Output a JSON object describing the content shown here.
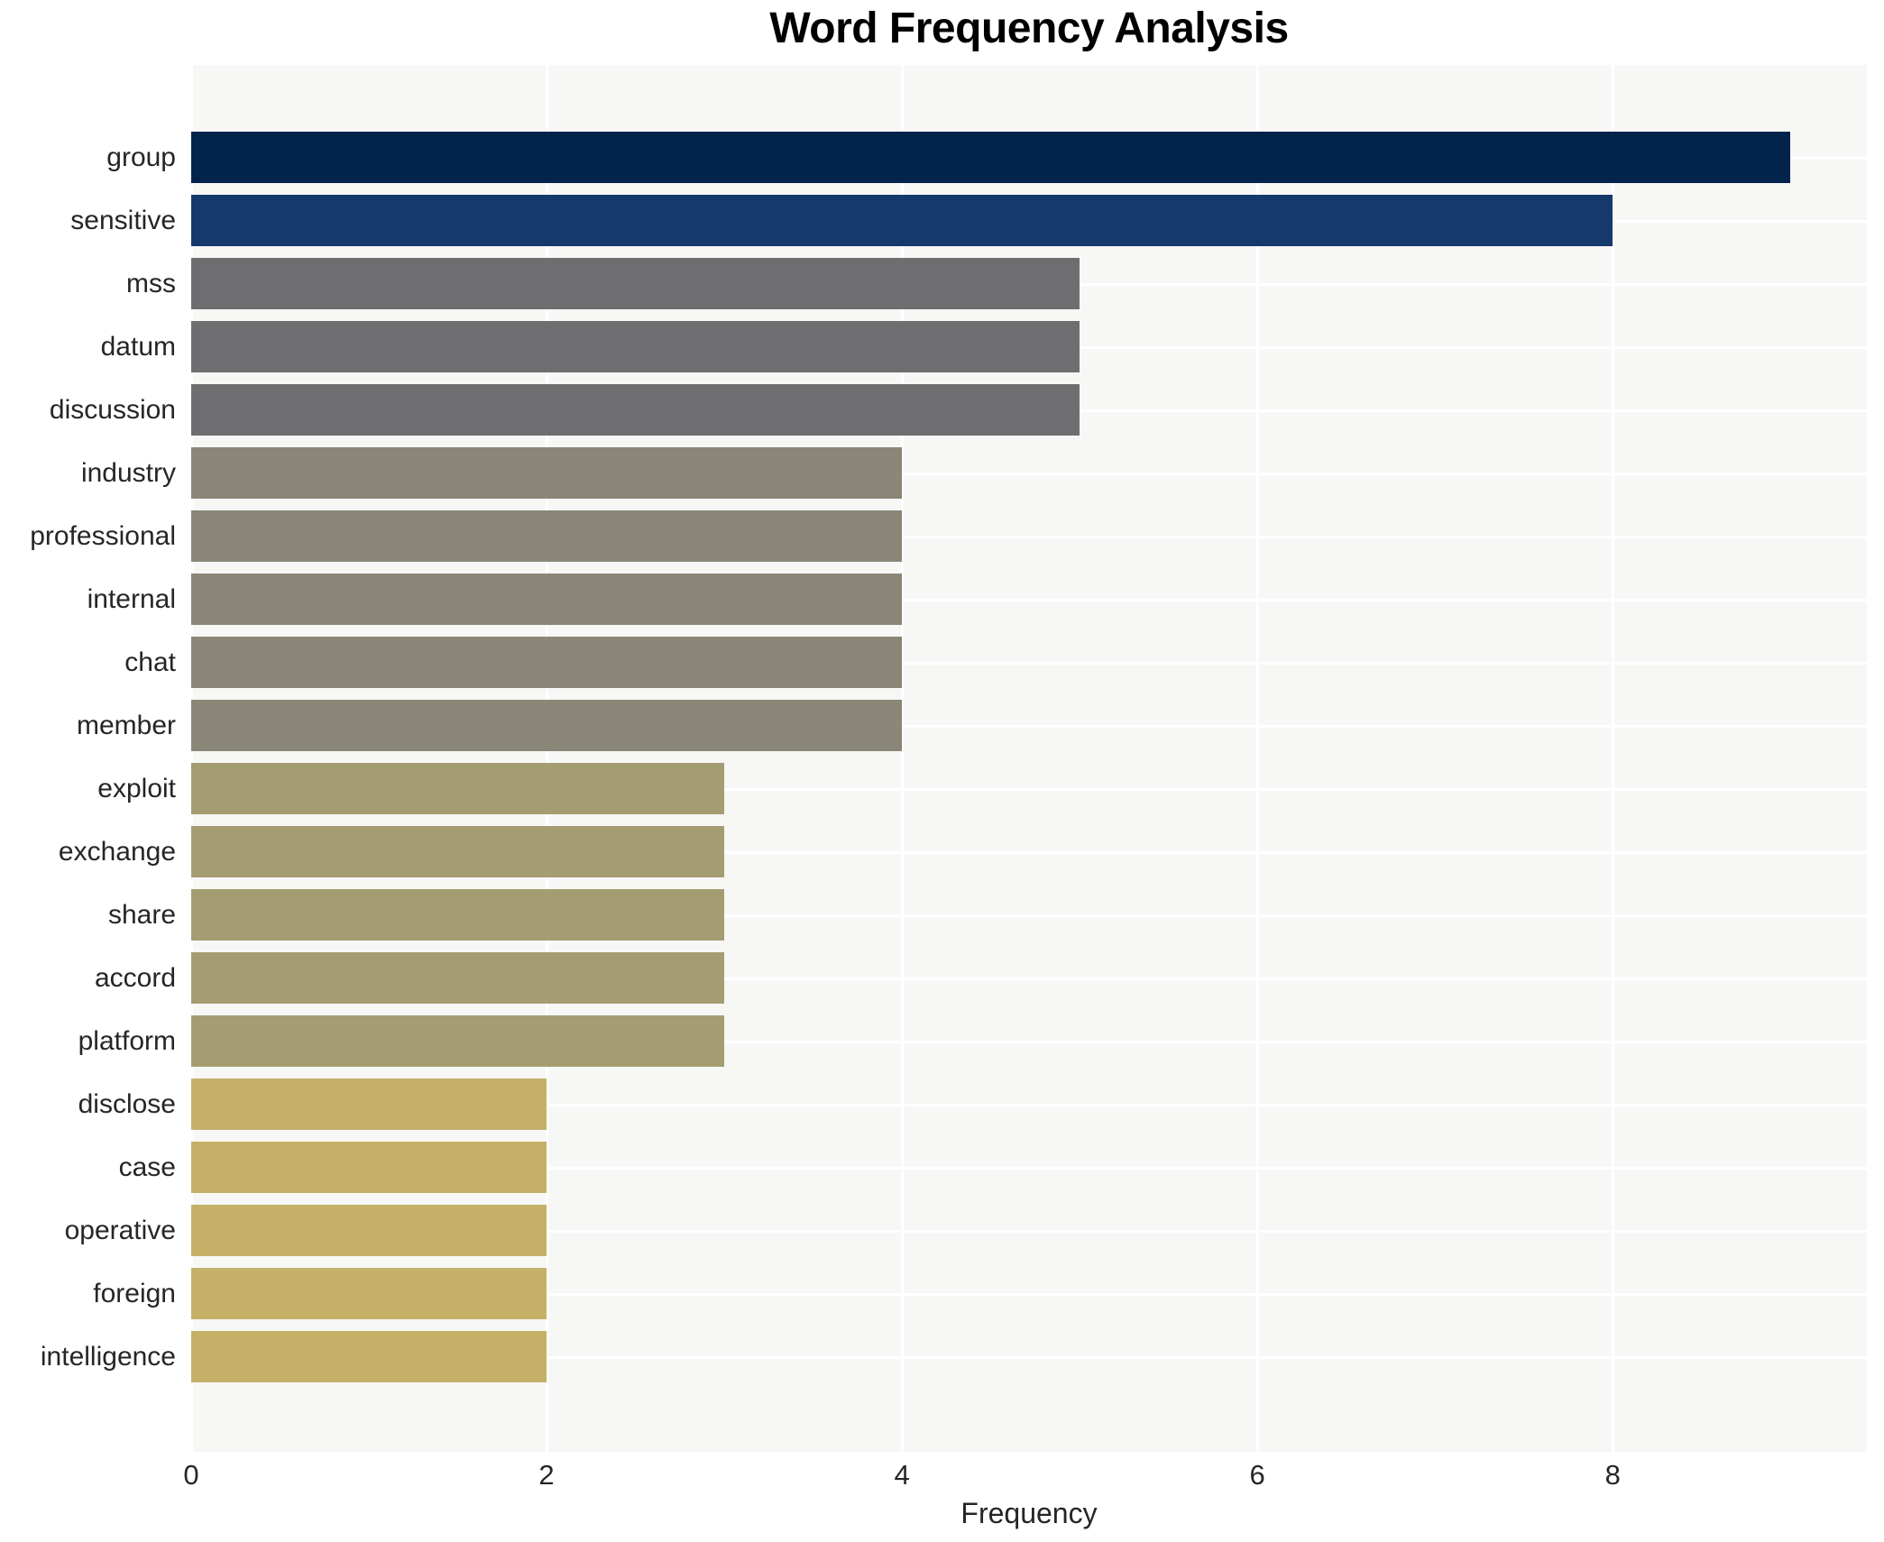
{
  "header": {
    "title": "Word Frequency Analysis"
  },
  "axes": {
    "x_label": "Frequency",
    "x_ticks": [
      0,
      2,
      4,
      6,
      8
    ]
  },
  "style": {
    "page_bg": "#ffffff",
    "plot_bg": "#f7f7f6",
    "grid_color": "#ffffff",
    "text_color": "#262626",
    "title_color": "#000000"
  },
  "chart_data": {
    "type": "bar",
    "orientation": "horizontal",
    "title": "Word Frequency Analysis",
    "xlabel": "Frequency",
    "ylabel": "",
    "xlim": [
      0,
      9.43
    ],
    "xticks": [
      0,
      2,
      4,
      6,
      8
    ],
    "grid": true,
    "legend": false,
    "categories": [
      "group",
      "sensitive",
      "mss",
      "datum",
      "discussion",
      "industry",
      "professional",
      "internal",
      "chat",
      "member",
      "exploit",
      "exchange",
      "share",
      "accord",
      "platform",
      "disclose",
      "case",
      "operative",
      "foreign",
      "intelligence"
    ],
    "values": [
      9,
      8,
      5,
      5,
      5,
      4,
      4,
      4,
      4,
      4,
      3,
      3,
      3,
      3,
      3,
      2,
      2,
      2,
      2,
      2
    ],
    "bar_colors": [
      "#02234c",
      "#16396c",
      "#6e6e70",
      "#6e6e70",
      "#6e6e70",
      "#8a8778",
      "#8a8778",
      "#8a8778",
      "#8a8778",
      "#8a8778",
      "#a59d72",
      "#a59d72",
      "#a59d72",
      "#a59d72",
      "#a59d72",
      "#c4b167",
      "#c4b167",
      "#c4b167",
      "#c4b167",
      "#c4b167"
    ]
  }
}
